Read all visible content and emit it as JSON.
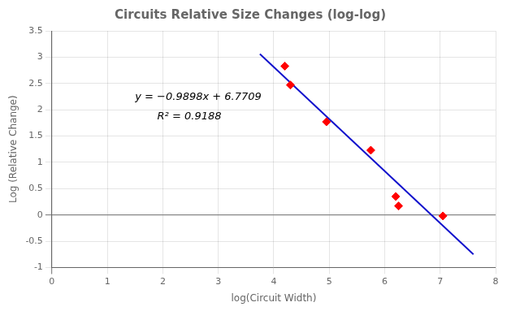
{
  "chart_data": {
    "type": "scatter",
    "title": "Circuits Relative Size Changes (log-log)",
    "xlabel": "log(Circuit Width)",
    "ylabel": "Log (Relative Change)",
    "series": [
      {
        "type": "scatter",
        "color": "#FF0000",
        "marker": "diamond",
        "x": [
          4.2,
          4.3,
          4.95,
          5.75,
          6.2,
          6.25,
          7.05
        ],
        "values": [
          2.83,
          2.47,
          1.77,
          1.23,
          0.35,
          0.17,
          -0.02
        ]
      },
      {
        "type": "line",
        "color": "#1111CC",
        "x": [
          3.75,
          7.6
        ],
        "values": [
          3.05915,
          -0.75158
        ]
      }
    ],
    "annotations": [
      {
        "text": "y = −0.9898x + 6.7709",
        "x": 1.5,
        "y": 2.18
      },
      {
        "text": "R² = 0.9188",
        "x": 1.9,
        "y": 1.82
      }
    ],
    "xlim": [
      0,
      8
    ],
    "ylim": [
      -1,
      3.5
    ],
    "xticks": [
      0,
      1,
      2,
      3,
      4,
      5,
      6,
      7,
      8
    ],
    "yticks": [
      -1,
      -0.5,
      0,
      0.5,
      1,
      1.5,
      2,
      2.5,
      3,
      3.5
    ],
    "grid": true
  }
}
